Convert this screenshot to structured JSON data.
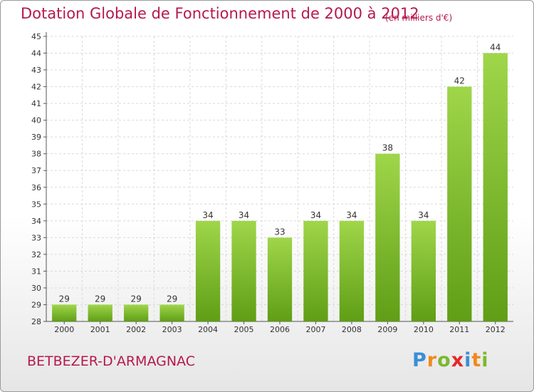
{
  "chart_data": {
    "type": "bar",
    "title": "Dotation Globale de Fonctionnement de 2000 à 2012",
    "subtitle": "(en milliers d'€)",
    "categories": [
      "2000",
      "2001",
      "2002",
      "2003",
      "2004",
      "2005",
      "2006",
      "2007",
      "2008",
      "2009",
      "2010",
      "2011",
      "2012"
    ],
    "values": [
      29,
      29,
      29,
      29,
      34,
      34,
      33,
      34,
      34,
      38,
      34,
      42,
      44
    ],
    "ylim": [
      28,
      45
    ],
    "yticks": [
      28,
      29,
      30,
      31,
      32,
      33,
      34,
      35,
      36,
      37,
      38,
      39,
      40,
      41,
      42,
      43,
      44,
      45
    ],
    "grid": true,
    "bar_color": "#7dc12d"
  },
  "footer": {
    "commune": "BETBEZER-D'ARMAGNAC",
    "logo_letters": [
      "P",
      "r",
      "o",
      "x",
      "i",
      "t",
      "i"
    ],
    "logo_colors": [
      "#3a8fd6",
      "#f08a1c",
      "#7cb82f",
      "#e8262a",
      "#3a8fd6",
      "#f08a1c",
      "#7cb82f"
    ]
  }
}
